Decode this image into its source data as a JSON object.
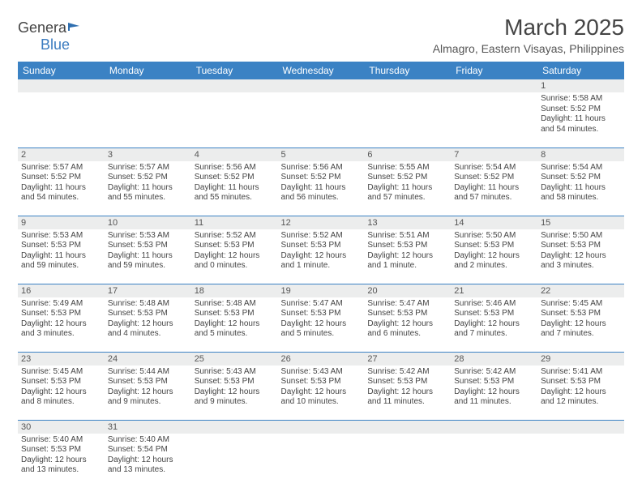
{
  "logo": {
    "textA": "Genera",
    "textB": "Blue"
  },
  "title": "March 2025",
  "subtitle": "Almagro, Eastern Visayas, Philippines",
  "colors": {
    "header_bg": "#3b82c4",
    "header_text": "#ffffff",
    "daynum_bg": "#eceded",
    "border": "#3b82c4",
    "text": "#444444"
  },
  "fonts": {
    "title_size": 28,
    "subtitle_size": 14,
    "dayhead_size": 12,
    "body_size": 10
  },
  "dayHeaders": [
    "Sunday",
    "Monday",
    "Tuesday",
    "Wednesday",
    "Thursday",
    "Friday",
    "Saturday"
  ],
  "weeks": [
    [
      null,
      null,
      null,
      null,
      null,
      null,
      {
        "n": "1",
        "sr": "5:58 AM",
        "ss": "5:52 PM",
        "dl": "11 hours and 54 minutes."
      }
    ],
    [
      {
        "n": "2",
        "sr": "5:57 AM",
        "ss": "5:52 PM",
        "dl": "11 hours and 54 minutes."
      },
      {
        "n": "3",
        "sr": "5:57 AM",
        "ss": "5:52 PM",
        "dl": "11 hours and 55 minutes."
      },
      {
        "n": "4",
        "sr": "5:56 AM",
        "ss": "5:52 PM",
        "dl": "11 hours and 55 minutes."
      },
      {
        "n": "5",
        "sr": "5:56 AM",
        "ss": "5:52 PM",
        "dl": "11 hours and 56 minutes."
      },
      {
        "n": "6",
        "sr": "5:55 AM",
        "ss": "5:52 PM",
        "dl": "11 hours and 57 minutes."
      },
      {
        "n": "7",
        "sr": "5:54 AM",
        "ss": "5:52 PM",
        "dl": "11 hours and 57 minutes."
      },
      {
        "n": "8",
        "sr": "5:54 AM",
        "ss": "5:52 PM",
        "dl": "11 hours and 58 minutes."
      }
    ],
    [
      {
        "n": "9",
        "sr": "5:53 AM",
        "ss": "5:53 PM",
        "dl": "11 hours and 59 minutes."
      },
      {
        "n": "10",
        "sr": "5:53 AM",
        "ss": "5:53 PM",
        "dl": "11 hours and 59 minutes."
      },
      {
        "n": "11",
        "sr": "5:52 AM",
        "ss": "5:53 PM",
        "dl": "12 hours and 0 minutes."
      },
      {
        "n": "12",
        "sr": "5:52 AM",
        "ss": "5:53 PM",
        "dl": "12 hours and 1 minute."
      },
      {
        "n": "13",
        "sr": "5:51 AM",
        "ss": "5:53 PM",
        "dl": "12 hours and 1 minute."
      },
      {
        "n": "14",
        "sr": "5:50 AM",
        "ss": "5:53 PM",
        "dl": "12 hours and 2 minutes."
      },
      {
        "n": "15",
        "sr": "5:50 AM",
        "ss": "5:53 PM",
        "dl": "12 hours and 3 minutes."
      }
    ],
    [
      {
        "n": "16",
        "sr": "5:49 AM",
        "ss": "5:53 PM",
        "dl": "12 hours and 3 minutes."
      },
      {
        "n": "17",
        "sr": "5:48 AM",
        "ss": "5:53 PM",
        "dl": "12 hours and 4 minutes."
      },
      {
        "n": "18",
        "sr": "5:48 AM",
        "ss": "5:53 PM",
        "dl": "12 hours and 5 minutes."
      },
      {
        "n": "19",
        "sr": "5:47 AM",
        "ss": "5:53 PM",
        "dl": "12 hours and 5 minutes."
      },
      {
        "n": "20",
        "sr": "5:47 AM",
        "ss": "5:53 PM",
        "dl": "12 hours and 6 minutes."
      },
      {
        "n": "21",
        "sr": "5:46 AM",
        "ss": "5:53 PM",
        "dl": "12 hours and 7 minutes."
      },
      {
        "n": "22",
        "sr": "5:45 AM",
        "ss": "5:53 PM",
        "dl": "12 hours and 7 minutes."
      }
    ],
    [
      {
        "n": "23",
        "sr": "5:45 AM",
        "ss": "5:53 PM",
        "dl": "12 hours and 8 minutes."
      },
      {
        "n": "24",
        "sr": "5:44 AM",
        "ss": "5:53 PM",
        "dl": "12 hours and 9 minutes."
      },
      {
        "n": "25",
        "sr": "5:43 AM",
        "ss": "5:53 PM",
        "dl": "12 hours and 9 minutes."
      },
      {
        "n": "26",
        "sr": "5:43 AM",
        "ss": "5:53 PM",
        "dl": "12 hours and 10 minutes."
      },
      {
        "n": "27",
        "sr": "5:42 AM",
        "ss": "5:53 PM",
        "dl": "12 hours and 11 minutes."
      },
      {
        "n": "28",
        "sr": "5:42 AM",
        "ss": "5:53 PM",
        "dl": "12 hours and 11 minutes."
      },
      {
        "n": "29",
        "sr": "5:41 AM",
        "ss": "5:53 PM",
        "dl": "12 hours and 12 minutes."
      }
    ],
    [
      {
        "n": "30",
        "sr": "5:40 AM",
        "ss": "5:53 PM",
        "dl": "12 hours and 13 minutes."
      },
      {
        "n": "31",
        "sr": "5:40 AM",
        "ss": "5:54 PM",
        "dl": "12 hours and 13 minutes."
      },
      null,
      null,
      null,
      null,
      null
    ]
  ],
  "labels": {
    "sunrise": "Sunrise: ",
    "sunset": "Sunset: ",
    "daylight": "Daylight: "
  }
}
